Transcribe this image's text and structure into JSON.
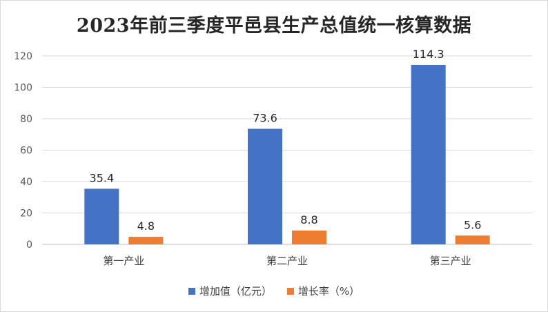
{
  "chart_data": {
    "type": "bar",
    "title": "2023年前三季度平邑县生产总值统一核算数据",
    "categories": [
      "第一产业",
      "第二产业",
      "第三产业"
    ],
    "series": [
      {
        "name": "增加值（亿元）",
        "values": [
          35.4,
          73.6,
          114.3
        ],
        "labels": [
          "35.4",
          "73.6",
          "114.3"
        ],
        "color": "#4472C4"
      },
      {
        "name": "增长率（%）",
        "values": [
          4.8,
          8.8,
          5.6
        ],
        "labels": [
          "4.8",
          "8.8",
          "5.6"
        ],
        "color": "#ED7D31"
      }
    ],
    "yticks": [
      "0",
      "20",
      "40",
      "60",
      "80",
      "100",
      "120"
    ],
    "ylim": [
      0,
      120
    ],
    "grid": true,
    "legend": "bottom"
  }
}
